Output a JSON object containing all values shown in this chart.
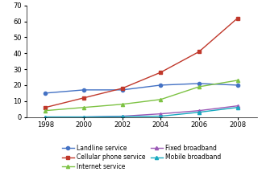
{
  "years": [
    1998,
    2000,
    2002,
    2004,
    2006,
    2008
  ],
  "series": {
    "Landline service": {
      "values": [
        15,
        17,
        17,
        20,
        21,
        20
      ],
      "color": "#4472C4",
      "marker": "o",
      "markersize": 3
    },
    "Cellular phone service": {
      "values": [
        6,
        12,
        18,
        28,
        41,
        62
      ],
      "color": "#C0382B",
      "marker": "s",
      "markersize": 3
    },
    "Internet service": {
      "values": [
        4,
        6,
        8,
        11,
        19,
        23
      ],
      "color": "#7DC243",
      "marker": "^",
      "markersize": 3
    },
    "Fixed broadband": {
      "values": [
        0,
        0,
        0.5,
        2,
        4,
        7
      ],
      "color": "#9B59B6",
      "marker": "^",
      "markersize": 3
    },
    "Mobile broadband": {
      "values": [
        0,
        0,
        0.3,
        0.5,
        3,
        6
      ],
      "color": "#17A9C0",
      "marker": "^",
      "markersize": 3
    }
  },
  "ylim": [
    0,
    70
  ],
  "yticks": [
    0,
    10,
    20,
    30,
    40,
    50,
    60,
    70
  ],
  "xticks": [
    1998,
    2000,
    2002,
    2004,
    2006,
    2008
  ],
  "xlim": [
    1997,
    2009
  ],
  "legend_col1": [
    "Landline service",
    "Internet service",
    "Mobile broadband"
  ],
  "legend_col2": [
    "Cellular phone service",
    "Fixed broadband"
  ],
  "legend_order": [
    "Landline service",
    "Cellular phone service",
    "Internet service",
    "Fixed broadband",
    "Mobile broadband"
  ]
}
